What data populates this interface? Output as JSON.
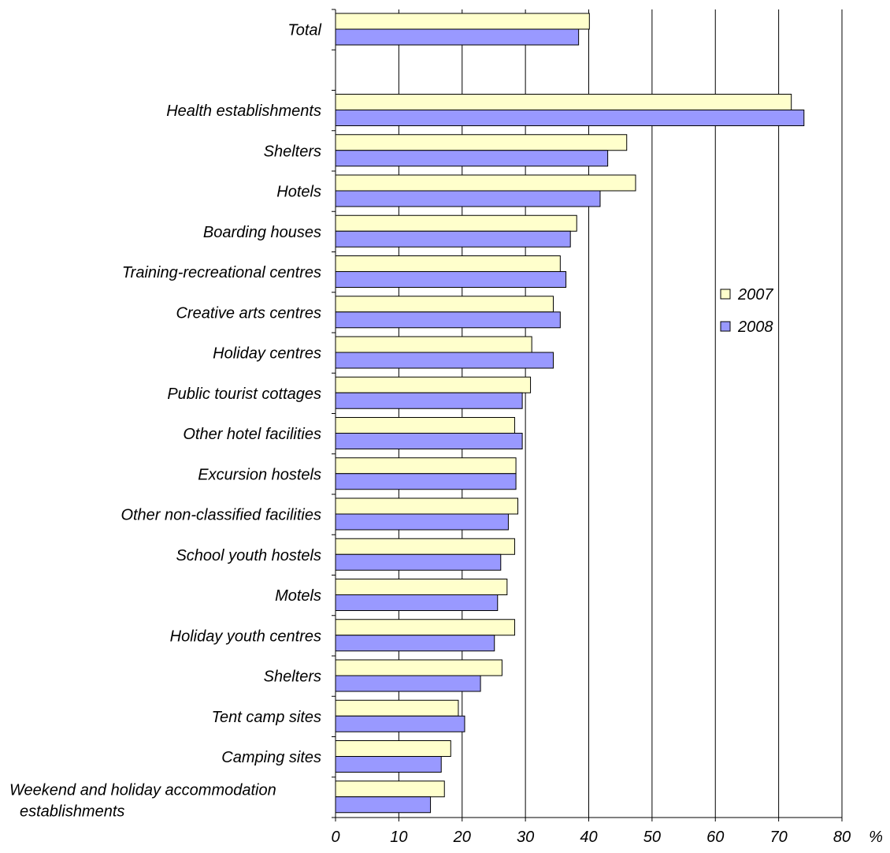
{
  "chart_data": {
    "type": "bar",
    "orientation": "horizontal",
    "categories": [
      "Total",
      "",
      "Health establishments",
      "Shelters",
      "Hotels",
      "Boarding houses",
      "Training-recreational centres",
      "Creative arts centres",
      "Holiday centres",
      "Public tourist cottages",
      "Other hotel facilities",
      "Excursion hostels",
      "Other non-classified facilities",
      "School youth hostels",
      "Motels",
      "Holiday youth centres",
      "Shelters",
      "Tent camp sites",
      "Camping sites",
      "Weekend and holiday accommodation establishments"
    ],
    "series": [
      {
        "name": "2007",
        "color": "#ffffcc",
        "values": [
          40.1,
          null,
          72.0,
          46.0,
          47.4,
          38.1,
          35.5,
          34.4,
          31.0,
          30.8,
          28.3,
          28.5,
          28.8,
          28.3,
          27.1,
          28.3,
          26.3,
          19.4,
          18.2,
          17.2
        ]
      },
      {
        "name": "2008",
        "color": "#9999ff",
        "values": [
          38.4,
          null,
          74.0,
          43.0,
          41.8,
          37.1,
          36.4,
          35.5,
          34.4,
          29.5,
          29.5,
          28.5,
          27.3,
          26.1,
          25.6,
          25.1,
          22.9,
          20.4,
          16.7,
          15.0
        ]
      }
    ],
    "xlim": [
      0,
      80
    ],
    "xticks": [
      "0",
      "10",
      "20",
      "30",
      "40",
      "50",
      "60",
      "70",
      "80"
    ],
    "unit_label": "%",
    "grid": "vertical",
    "legend_placement": "right",
    "title": "",
    "xlabel": "",
    "ylabel": ""
  }
}
